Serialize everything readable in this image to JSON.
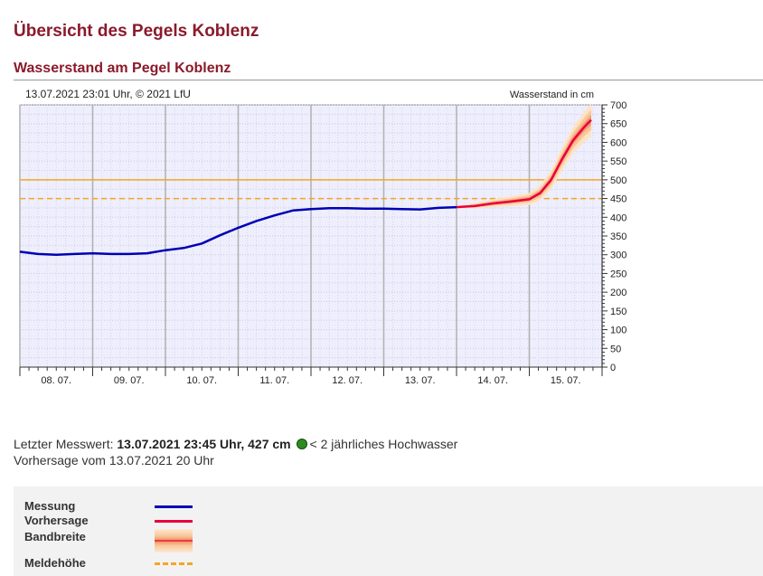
{
  "page": {
    "title": "Übersicht des Pegels Koblenz",
    "section_title": "Wasserstand am Pegel Koblenz"
  },
  "chart_header": {
    "timestamp": "13.07.2021 23:01 Uhr, © 2021 LfU",
    "unit_label": "Wasserstand in cm"
  },
  "info": {
    "last_label": "Letzter Messwert:",
    "last_value": "13.07.2021 23:45 Uhr, 427 cm",
    "class_text": "< 2 jährliches Hochwasser",
    "class_color": "#2e8b20",
    "forecast_text": "Vorhersage vom 13.07.2021 20 Uhr"
  },
  "legend": {
    "items": [
      {
        "label": "Messung",
        "color": "#0000b4",
        "style": "solid"
      },
      {
        "label": "Vorhersage",
        "color": "#e8003c",
        "style": "solid"
      },
      {
        "label": "Bandbreite",
        "color": "#f7b07a",
        "style": "band"
      },
      {
        "label": "Meldehöhe",
        "color": "#f5a623",
        "style": "dashed"
      }
    ]
  },
  "chart_data": {
    "type": "line",
    "ylabel": "Wasserstand in cm",
    "ylim": [
      0,
      700
    ],
    "yticks": [
      0,
      50,
      100,
      150,
      200,
      250,
      300,
      350,
      400,
      450,
      500,
      550,
      600,
      650,
      700
    ],
    "xlim": [
      0,
      8
    ],
    "x_unit": "days since 08.07. 00:00",
    "x_tick_labels": [
      "08. 07.",
      "09. 07.",
      "10. 07.",
      "11. 07.",
      "12. 07.",
      "13. 07.",
      "14. 07.",
      "15. 07."
    ],
    "grid": true,
    "reference_lines": [
      {
        "value": 500,
        "color": "#f5a623",
        "style": "solid"
      },
      {
        "value": 450,
        "color": "#f5a623",
        "style": "dashed"
      }
    ],
    "series": [
      {
        "name": "Messung",
        "color": "#0000b4",
        "x": [
          0,
          0.25,
          0.5,
          0.75,
          1,
          1.25,
          1.5,
          1.75,
          2,
          2.25,
          2.5,
          2.75,
          3,
          3.25,
          3.5,
          3.75,
          4,
          4.25,
          4.5,
          4.75,
          5,
          5.25,
          5.5,
          5.75,
          6.0
        ],
        "y": [
          308,
          302,
          300,
          302,
          304,
          302,
          302,
          304,
          312,
          318,
          330,
          352,
          372,
          390,
          405,
          418,
          422,
          424,
          424,
          423,
          423,
          422,
          421,
          425,
          427
        ]
      },
      {
        "name": "Vorhersage",
        "color": "#e8003c",
        "x": [
          6.0,
          6.25,
          6.5,
          6.75,
          7.0,
          7.15,
          7.3,
          7.45,
          7.6,
          7.75,
          7.85
        ],
        "y": [
          427,
          430,
          437,
          442,
          448,
          465,
          500,
          555,
          605,
          640,
          660
        ]
      }
    ],
    "band": {
      "name": "Bandbreite",
      "x": [
        6.0,
        6.25,
        6.5,
        6.75,
        7.0,
        7.15,
        7.3,
        7.45,
        7.6,
        7.75,
        7.85
      ],
      "upper": [
        430,
        438,
        448,
        456,
        465,
        485,
        525,
        585,
        640,
        680,
        705
      ],
      "lower": [
        424,
        424,
        427,
        430,
        433,
        445,
        475,
        525,
        570,
        600,
        615
      ]
    }
  }
}
